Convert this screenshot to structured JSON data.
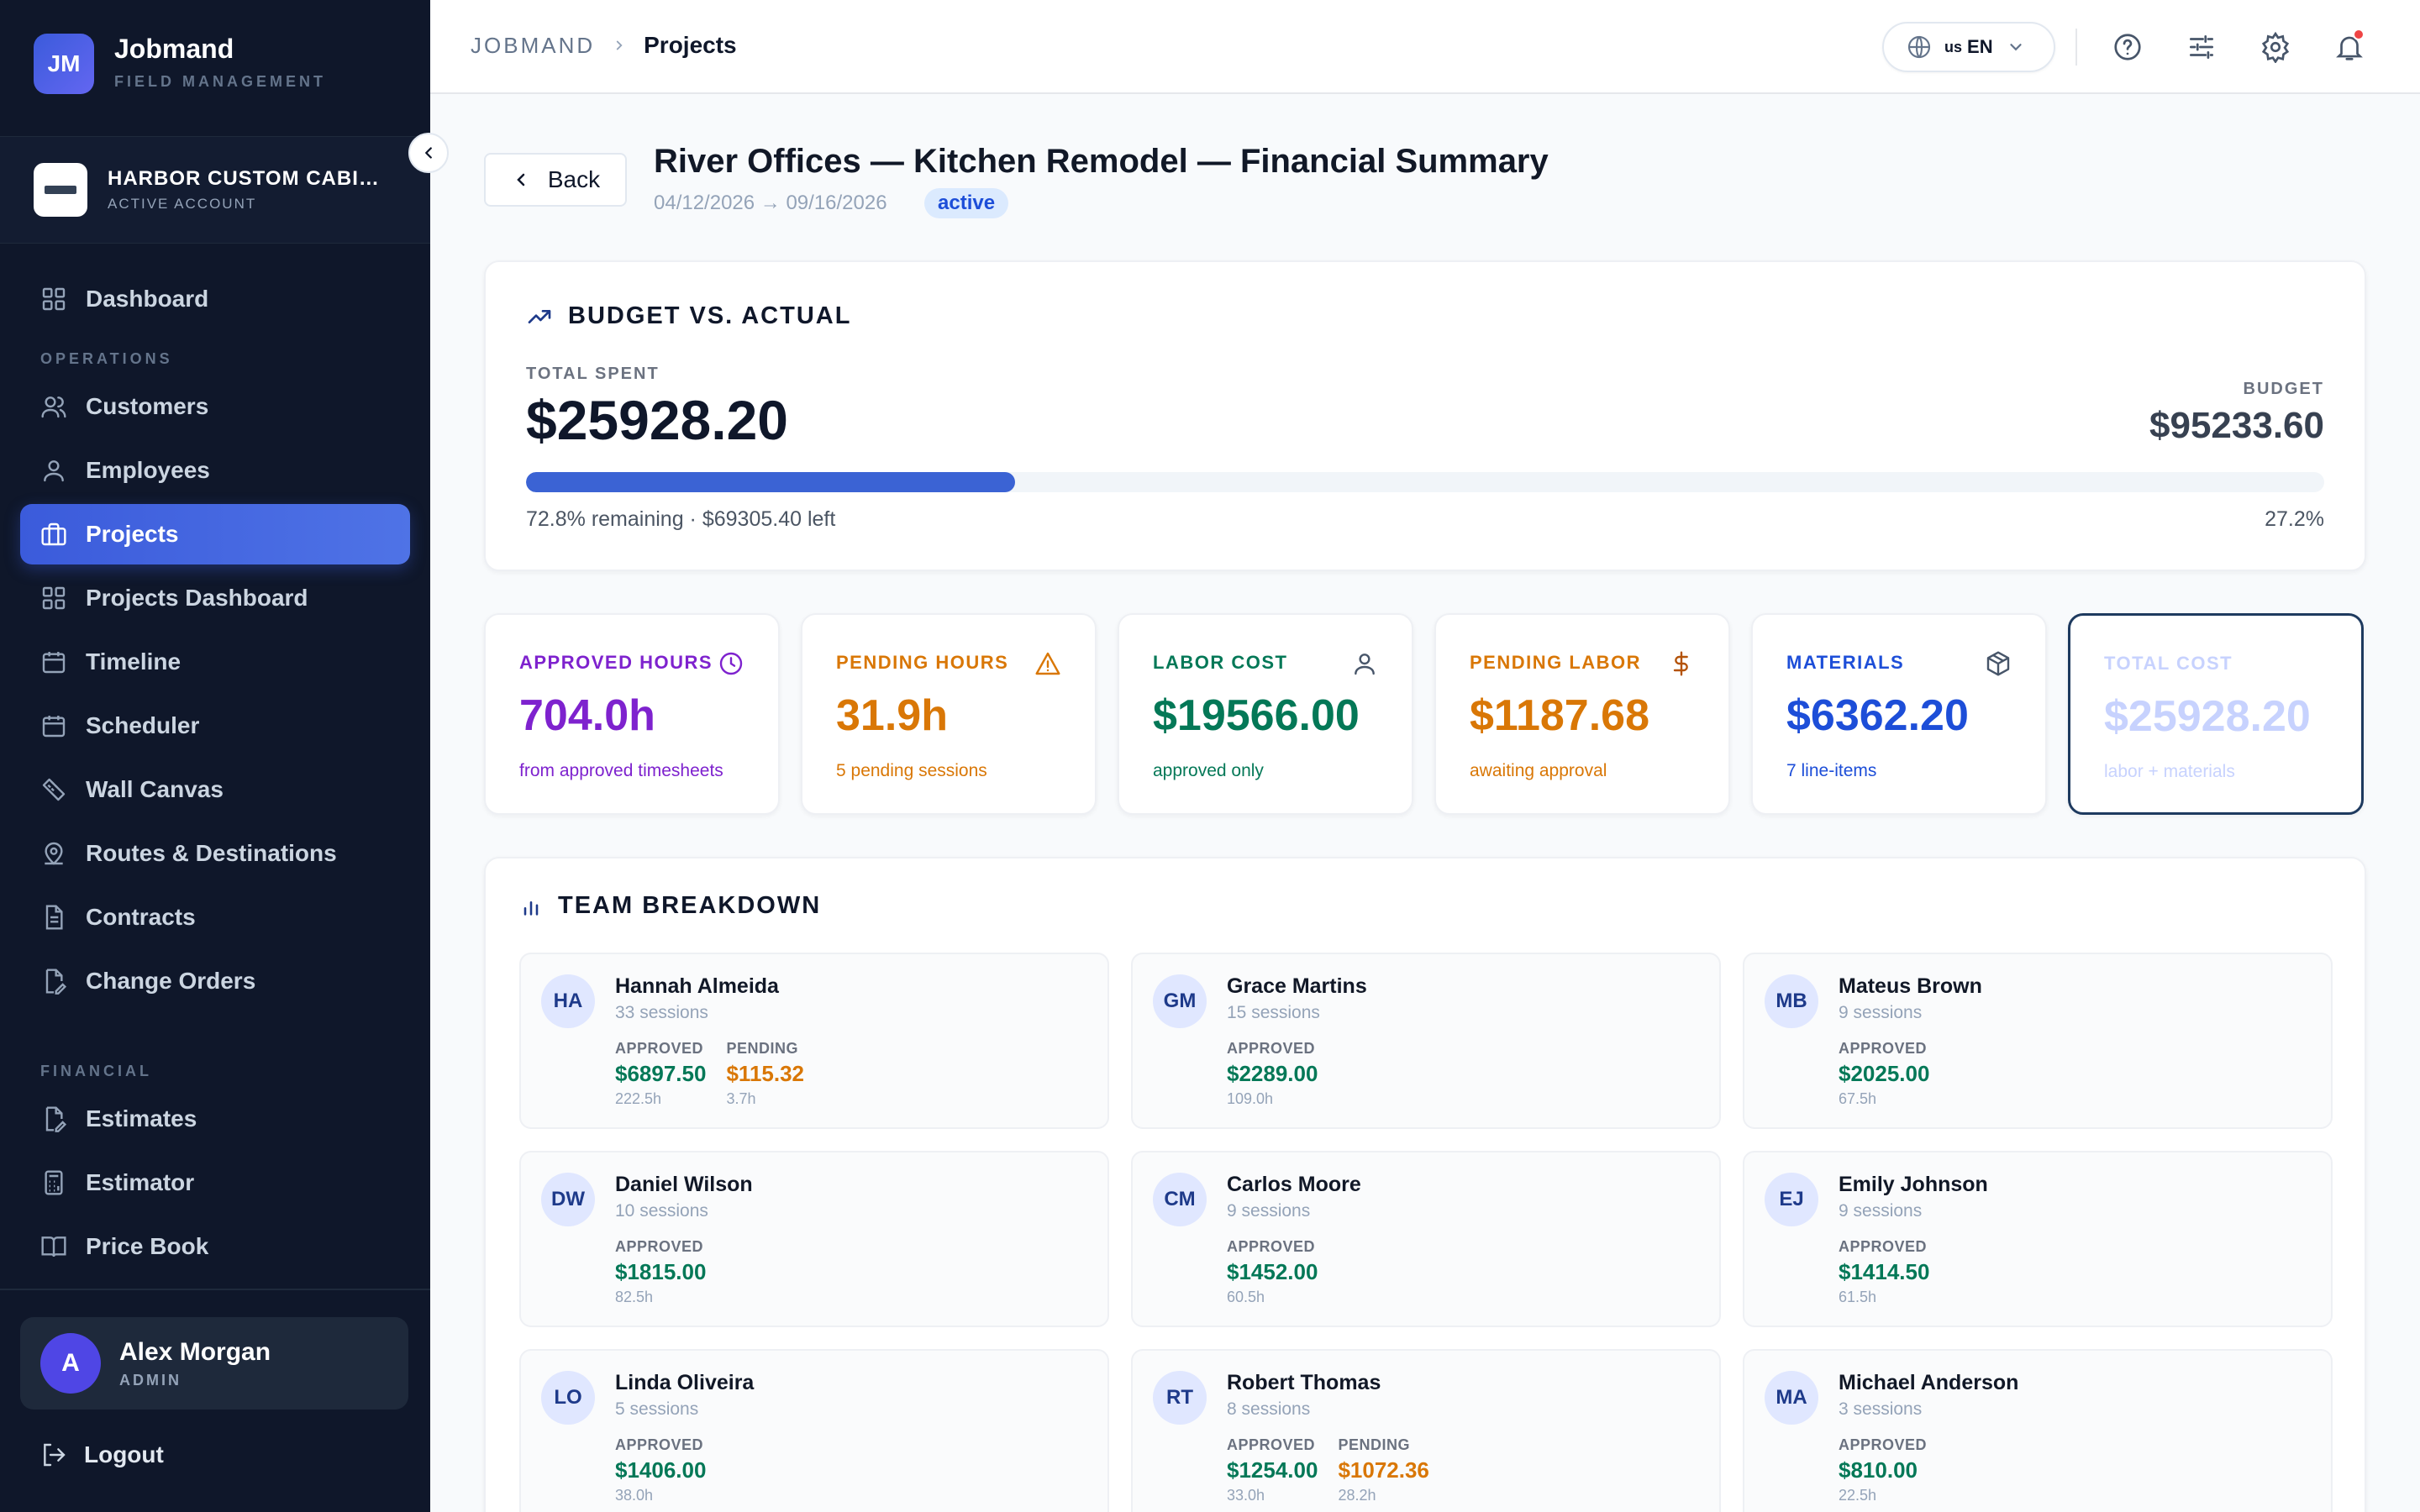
{
  "brand": {
    "logo": "JM",
    "name": "Jobmand",
    "subtitle": "FIELD MANAGEMENT"
  },
  "account": {
    "name": "HARBOR CUSTOM CABIN...",
    "subtitle": "ACTIVE ACCOUNT"
  },
  "nav": {
    "dashboard": "Dashboard",
    "section_operations": "OPERATIONS",
    "customers": "Customers",
    "employees": "Employees",
    "projects": "Projects",
    "projects_dashboard": "Projects Dashboard",
    "timeline": "Timeline",
    "scheduler": "Scheduler",
    "wall_canvas": "Wall Canvas",
    "routes": "Routes & Destinations",
    "contracts": "Contracts",
    "change_orders": "Change Orders",
    "section_financial": "FINANCIAL",
    "estimates": "Estimates",
    "estimator": "Estimator",
    "price_book": "Price Book"
  },
  "user": {
    "initial": "A",
    "name": "Alex Morgan",
    "role": "ADMIN"
  },
  "logout": "Logout",
  "breadcrumb": {
    "root": "JOBMAND",
    "current": "Projects"
  },
  "language": {
    "flag": "us",
    "code": "EN"
  },
  "page": {
    "back": "Back",
    "title": "River Offices — Kitchen Remodel — Financial Summary",
    "dates": "04/12/2026 → 09/16/2026",
    "status": "active"
  },
  "budget": {
    "heading": "BUDGET VS. ACTUAL",
    "total_spent_label": "TOTAL SPENT",
    "total_spent": "$25928.20",
    "budget_label": "BUDGET",
    "budget_value": "$95233.60",
    "progress_fraction": 0.272,
    "remaining_text": "72.8% remaining · $69305.40 left",
    "percent_used": "27.2%"
  },
  "stats": [
    {
      "label": "APPROVED HOURS",
      "value": "704.0h",
      "sub": "from approved timesheets",
      "icon": "clock-icon",
      "color": "#7e22ce"
    },
    {
      "label": "PENDING HOURS",
      "value": "31.9h",
      "sub": "5 pending sessions",
      "icon": "warning-icon",
      "color": "#d97706"
    },
    {
      "label": "LABOR COST",
      "value": "$19566.00",
      "sub": "approved only",
      "icon": "user-icon",
      "color": "#047857"
    },
    {
      "label": "PENDING LABOR",
      "value": "$1187.68",
      "sub": "awaiting approval",
      "icon": "dollar-icon",
      "color": "#d97706"
    },
    {
      "label": "MATERIALS",
      "value": "$6362.20",
      "sub": "7 line-items",
      "icon": "box-icon",
      "color": "#1d4ed8"
    },
    {
      "label": "TOTAL COST",
      "value": "$25928.20",
      "sub": "labor + materials",
      "icon": "",
      "color": "#c7d2fe"
    }
  ],
  "team": {
    "heading": "TEAM BREAKDOWN",
    "approved_label": "APPROVED",
    "pending_label": "PENDING",
    "members": [
      {
        "initials": "HA",
        "name": "Hannah Almeida",
        "sessions": "33 sessions",
        "approved": "$6897.50",
        "approved_hours": "222.5h",
        "pending": "$115.32",
        "pending_hours": "3.7h"
      },
      {
        "initials": "GM",
        "name": "Grace Martins",
        "sessions": "15 sessions",
        "approved": "$2289.00",
        "approved_hours": "109.0h"
      },
      {
        "initials": "MB",
        "name": "Mateus Brown",
        "sessions": "9 sessions",
        "approved": "$2025.00",
        "approved_hours": "67.5h"
      },
      {
        "initials": "DW",
        "name": "Daniel Wilson",
        "sessions": "10 sessions",
        "approved": "$1815.00",
        "approved_hours": "82.5h"
      },
      {
        "initials": "CM",
        "name": "Carlos Moore",
        "sessions": "9 sessions",
        "approved": "$1452.00",
        "approved_hours": "60.5h"
      },
      {
        "initials": "EJ",
        "name": "Emily Johnson",
        "sessions": "9 sessions",
        "approved": "$1414.50",
        "approved_hours": "61.5h"
      },
      {
        "initials": "LO",
        "name": "Linda Oliveira",
        "sessions": "5 sessions",
        "approved": "$1406.00",
        "approved_hours": "38.0h"
      },
      {
        "initials": "RT",
        "name": "Robert Thomas",
        "sessions": "8 sessions",
        "approved": "$1254.00",
        "approved_hours": "33.0h",
        "pending": "$1072.36",
        "pending_hours": "28.2h"
      },
      {
        "initials": "MA",
        "name": "Michael Anderson",
        "sessions": "3 sessions",
        "approved": "$810.00",
        "approved_hours": "22.5h"
      }
    ]
  }
}
